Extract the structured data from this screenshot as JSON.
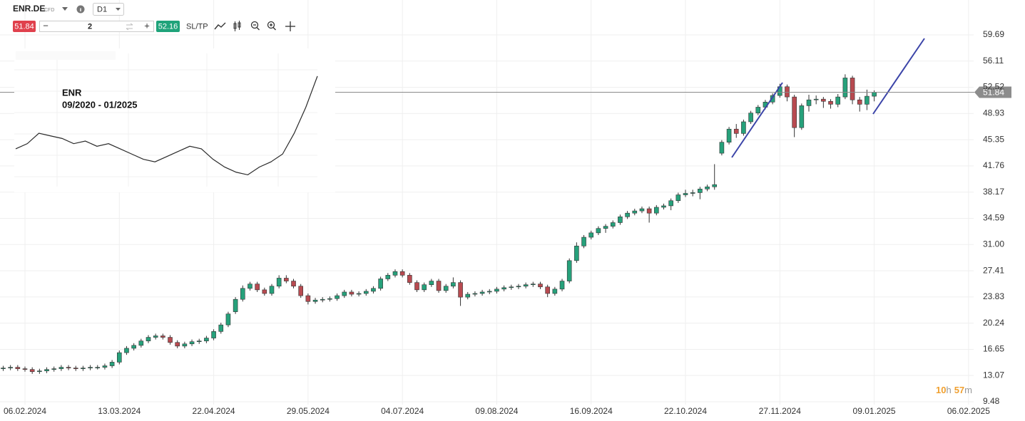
{
  "toolbar": {
    "symbol": "ENR.DE",
    "instrument": "CFD",
    "timeframe": "D1",
    "sell_price": "51.84",
    "volume": "2",
    "buy_price": "52.16",
    "sltp": "SL/TP"
  },
  "inset": {
    "title": "ENR",
    "period": "09/2020 - 01/2025",
    "ylim": [
      8,
      56
    ],
    "values": [
      22,
      24,
      28,
      27,
      26,
      24,
      25,
      23,
      24,
      22,
      20,
      18,
      17,
      19,
      21,
      23,
      22,
      18,
      15,
      13,
      12,
      15,
      17,
      20,
      28,
      38,
      50
    ]
  },
  "timer": [
    "10",
    "h",
    "57",
    "m"
  ],
  "chart_data": {
    "type": "candlestick",
    "up_color": "#26a17b",
    "down_color": "#b84a50",
    "grid": true,
    "xlim": [
      -3.44,
      130.7
    ],
    "ylim": [
      9.09,
      64.47
    ],
    "xticks": [
      {
        "value": 0,
        "label": "06.02.2024"
      },
      {
        "value": 13,
        "label": "13.03.2024"
      },
      {
        "value": 26,
        "label": "22.04.2024"
      },
      {
        "value": 39,
        "label": "29.05.2024"
      },
      {
        "value": 52,
        "label": "04.07.2024"
      },
      {
        "value": 65,
        "label": "09.08.2024"
      },
      {
        "value": 78,
        "label": "16.09.2024"
      },
      {
        "value": 91,
        "label": "22.10.2024"
      },
      {
        "value": 104,
        "label": "27.11.2024"
      },
      {
        "value": 117,
        "label": "09.01.2025"
      },
      {
        "value": 130,
        "label": "06.02.2025"
      }
    ],
    "yticks": [
      59.69,
      56.11,
      52.52,
      48.93,
      45.35,
      41.76,
      38.17,
      34.59,
      {
        "value": 31,
        "label": "31.00"
      },
      27.41,
      23.83,
      20.24,
      16.65,
      13.07,
      9.48
    ],
    "x": [
      -3,
      -2,
      -1,
      0,
      1,
      2,
      3,
      4,
      5,
      6,
      7,
      8,
      9,
      10,
      11,
      12,
      13,
      14,
      15,
      16,
      17,
      18,
      19,
      20,
      21,
      22,
      23,
      24,
      25,
      26,
      27,
      28,
      29,
      30,
      31,
      32,
      33,
      34,
      35,
      36,
      37,
      38,
      39,
      40,
      41,
      42,
      43,
      44,
      45,
      46,
      47,
      48,
      49,
      50,
      51,
      52,
      53,
      54,
      55,
      56,
      57,
      58,
      59,
      60,
      61,
      62,
      63,
      64,
      65,
      66,
      67,
      68,
      69,
      70,
      71,
      72,
      73,
      74,
      75,
      76,
      77,
      78,
      79,
      80,
      81,
      82,
      83,
      84,
      85,
      86,
      87,
      88,
      89,
      90,
      91,
      92,
      93,
      94,
      95,
      96,
      97,
      98,
      99,
      100,
      101,
      102,
      103,
      104,
      105,
      106,
      107,
      108,
      109,
      110,
      111,
      112,
      113,
      114,
      115,
      116,
      117
    ],
    "open": [
      14.0,
      14.1,
      14.2,
      14.0,
      13.9,
      13.6,
      13.7,
      13.9,
      14.0,
      14.2,
      14.1,
      14.0,
      14.1,
      14.2,
      14.2,
      14.4,
      14.9,
      16.2,
      16.8,
      17.2,
      17.8,
      18.3,
      18.5,
      18.3,
      17.6,
      17.1,
      17.4,
      17.7,
      17.8,
      18.2,
      19.1,
      20.0,
      21.8,
      23.5,
      25.0,
      25.6,
      24.8,
      24.3,
      25.3,
      26.4,
      26.0,
      25.3,
      24.0,
      23.2,
      23.4,
      23.5,
      23.6,
      24.0,
      24.5,
      24.2,
      24.3,
      24.6,
      25.0,
      26.3,
      26.8,
      27.3,
      26.8,
      25.8,
      24.8,
      25.5,
      26.0,
      24.7,
      25.3,
      25.8,
      23.8,
      24.2,
      24.3,
      24.5,
      24.6,
      24.9,
      25.1,
      25.2,
      25.3,
      25.5,
      25.6,
      25.2,
      24.3,
      24.9,
      26.0,
      28.8,
      30.8,
      32.0,
      32.6,
      33.2,
      33.5,
      34.0,
      34.8,
      35.3,
      35.6,
      35.9,
      35.3,
      36.1,
      36.3,
      37.0,
      37.8,
      38.0,
      38.1,
      38.6,
      38.9,
      43.5,
      45.0,
      46.8,
      46.2,
      47.8,
      49.0,
      49.8,
      50.5,
      51.4,
      52.6,
      51.2,
      47.0,
      50.0,
      50.8,
      50.9,
      50.6,
      50.2,
      51.2,
      53.8,
      50.8,
      50.2,
      51.3
    ],
    "high": [
      14.4,
      14.5,
      14.5,
      14.3,
      14.2,
      14.0,
      14.2,
      14.3,
      14.5,
      14.5,
      14.4,
      14.4,
      14.5,
      14.5,
      14.7,
      15.2,
      16.5,
      17.1,
      17.5,
      18.1,
      18.6,
      18.8,
      18.8,
      18.6,
      17.9,
      17.7,
      18.0,
      18.1,
      18.5,
      19.4,
      20.3,
      21.8,
      23.8,
      25.4,
      25.9,
      25.9,
      25.1,
      25.6,
      26.8,
      26.8,
      26.3,
      25.6,
      24.3,
      23.7,
      23.8,
      23.9,
      24.3,
      24.8,
      24.8,
      24.6,
      24.9,
      25.3,
      26.6,
      27.1,
      27.6,
      27.6,
      27.1,
      26.1,
      25.8,
      26.3,
      26.3,
      25.6,
      26.5,
      26.1,
      24.5,
      24.6,
      24.8,
      24.9,
      25.2,
      25.4,
      25.5,
      25.6,
      25.8,
      25.9,
      25.9,
      25.5,
      25.2,
      26.3,
      29.1,
      31.3,
      32.3,
      32.9,
      33.5,
      33.8,
      34.3,
      35.1,
      35.6,
      35.9,
      36.2,
      36.2,
      36.4,
      36.6,
      37.3,
      38.1,
      38.5,
      38.5,
      38.9,
      39.2,
      42.0,
      45.3,
      47.1,
      47.5,
      48.1,
      49.3,
      50.1,
      50.8,
      51.7,
      53.0,
      52.9,
      51.5,
      50.3,
      51.5,
      51.4,
      51.2,
      50.9,
      51.6,
      54.3,
      54.1,
      51.2,
      52.2,
      52.1
    ],
    "low": [
      13.7,
      13.8,
      13.7,
      13.6,
      13.3,
      13.3,
      13.4,
      13.6,
      13.7,
      13.8,
      13.7,
      13.7,
      13.8,
      13.9,
      13.9,
      14.1,
      14.6,
      15.9,
      16.5,
      16.9,
      17.5,
      18.0,
      18.0,
      17.3,
      16.8,
      16.8,
      17.1,
      17.4,
      17.5,
      17.9,
      18.8,
      19.7,
      21.5,
      23.2,
      24.7,
      24.5,
      24.0,
      24.0,
      25.0,
      25.7,
      25.0,
      23.7,
      22.8,
      22.9,
      23.1,
      23.2,
      23.3,
      23.7,
      23.9,
      23.9,
      24.0,
      24.3,
      24.7,
      26.0,
      26.5,
      26.5,
      25.5,
      24.5,
      24.5,
      25.2,
      24.4,
      24.4,
      25.0,
      22.6,
      23.5,
      23.9,
      24.0,
      24.2,
      24.3,
      24.6,
      24.8,
      24.9,
      25.0,
      25.2,
      24.9,
      23.8,
      24.0,
      24.6,
      25.7,
      28.5,
      30.5,
      31.7,
      32.3,
      32.6,
      33.2,
      33.7,
      34.5,
      35.0,
      35.3,
      34.0,
      35.0,
      35.8,
      35.7,
      36.7,
      37.5,
      37.6,
      37.2,
      38.3,
      38.5,
      43.2,
      44.7,
      45.6,
      45.9,
      47.5,
      48.7,
      49.5,
      50.2,
      51.1,
      50.6,
      45.7,
      46.7,
      49.2,
      50.2,
      49.7,
      49.6,
      49.8,
      50.9,
      50.2,
      49.2,
      49.4,
      50.6
    ],
    "close": [
      14.1,
      14.2,
      14.0,
      13.9,
      13.6,
      13.7,
      13.9,
      14.0,
      14.2,
      14.1,
      14.0,
      14.1,
      14.2,
      14.2,
      14.4,
      14.9,
      16.2,
      16.8,
      17.2,
      17.8,
      18.3,
      18.5,
      18.3,
      17.6,
      17.1,
      17.4,
      17.7,
      17.8,
      18.2,
      19.1,
      20.0,
      21.5,
      23.5,
      25.0,
      25.6,
      24.8,
      24.3,
      25.3,
      26.4,
      26.0,
      25.3,
      24.0,
      23.2,
      23.4,
      23.5,
      23.6,
      24.0,
      24.5,
      24.2,
      24.3,
      24.6,
      25.0,
      26.3,
      26.8,
      27.3,
      26.8,
      25.8,
      24.8,
      25.5,
      26.0,
      24.7,
      25.3,
      25.8,
      23.8,
      24.2,
      24.3,
      24.5,
      24.6,
      24.9,
      25.1,
      25.2,
      25.3,
      25.5,
      25.6,
      25.2,
      24.3,
      24.9,
      26.0,
      28.8,
      30.8,
      32.0,
      32.6,
      33.2,
      33.5,
      34.0,
      34.8,
      35.3,
      35.6,
      35.9,
      35.3,
      36.1,
      36.3,
      37.0,
      37.8,
      38.0,
      38.1,
      38.6,
      38.9,
      39.2,
      45.0,
      46.8,
      46.2,
      47.8,
      49.0,
      49.8,
      50.5,
      51.4,
      52.6,
      51.2,
      47.0,
      50.0,
      50.8,
      50.9,
      50.6,
      50.2,
      51.2,
      53.8,
      50.8,
      50.2,
      51.3,
      51.84
    ]
  }
}
